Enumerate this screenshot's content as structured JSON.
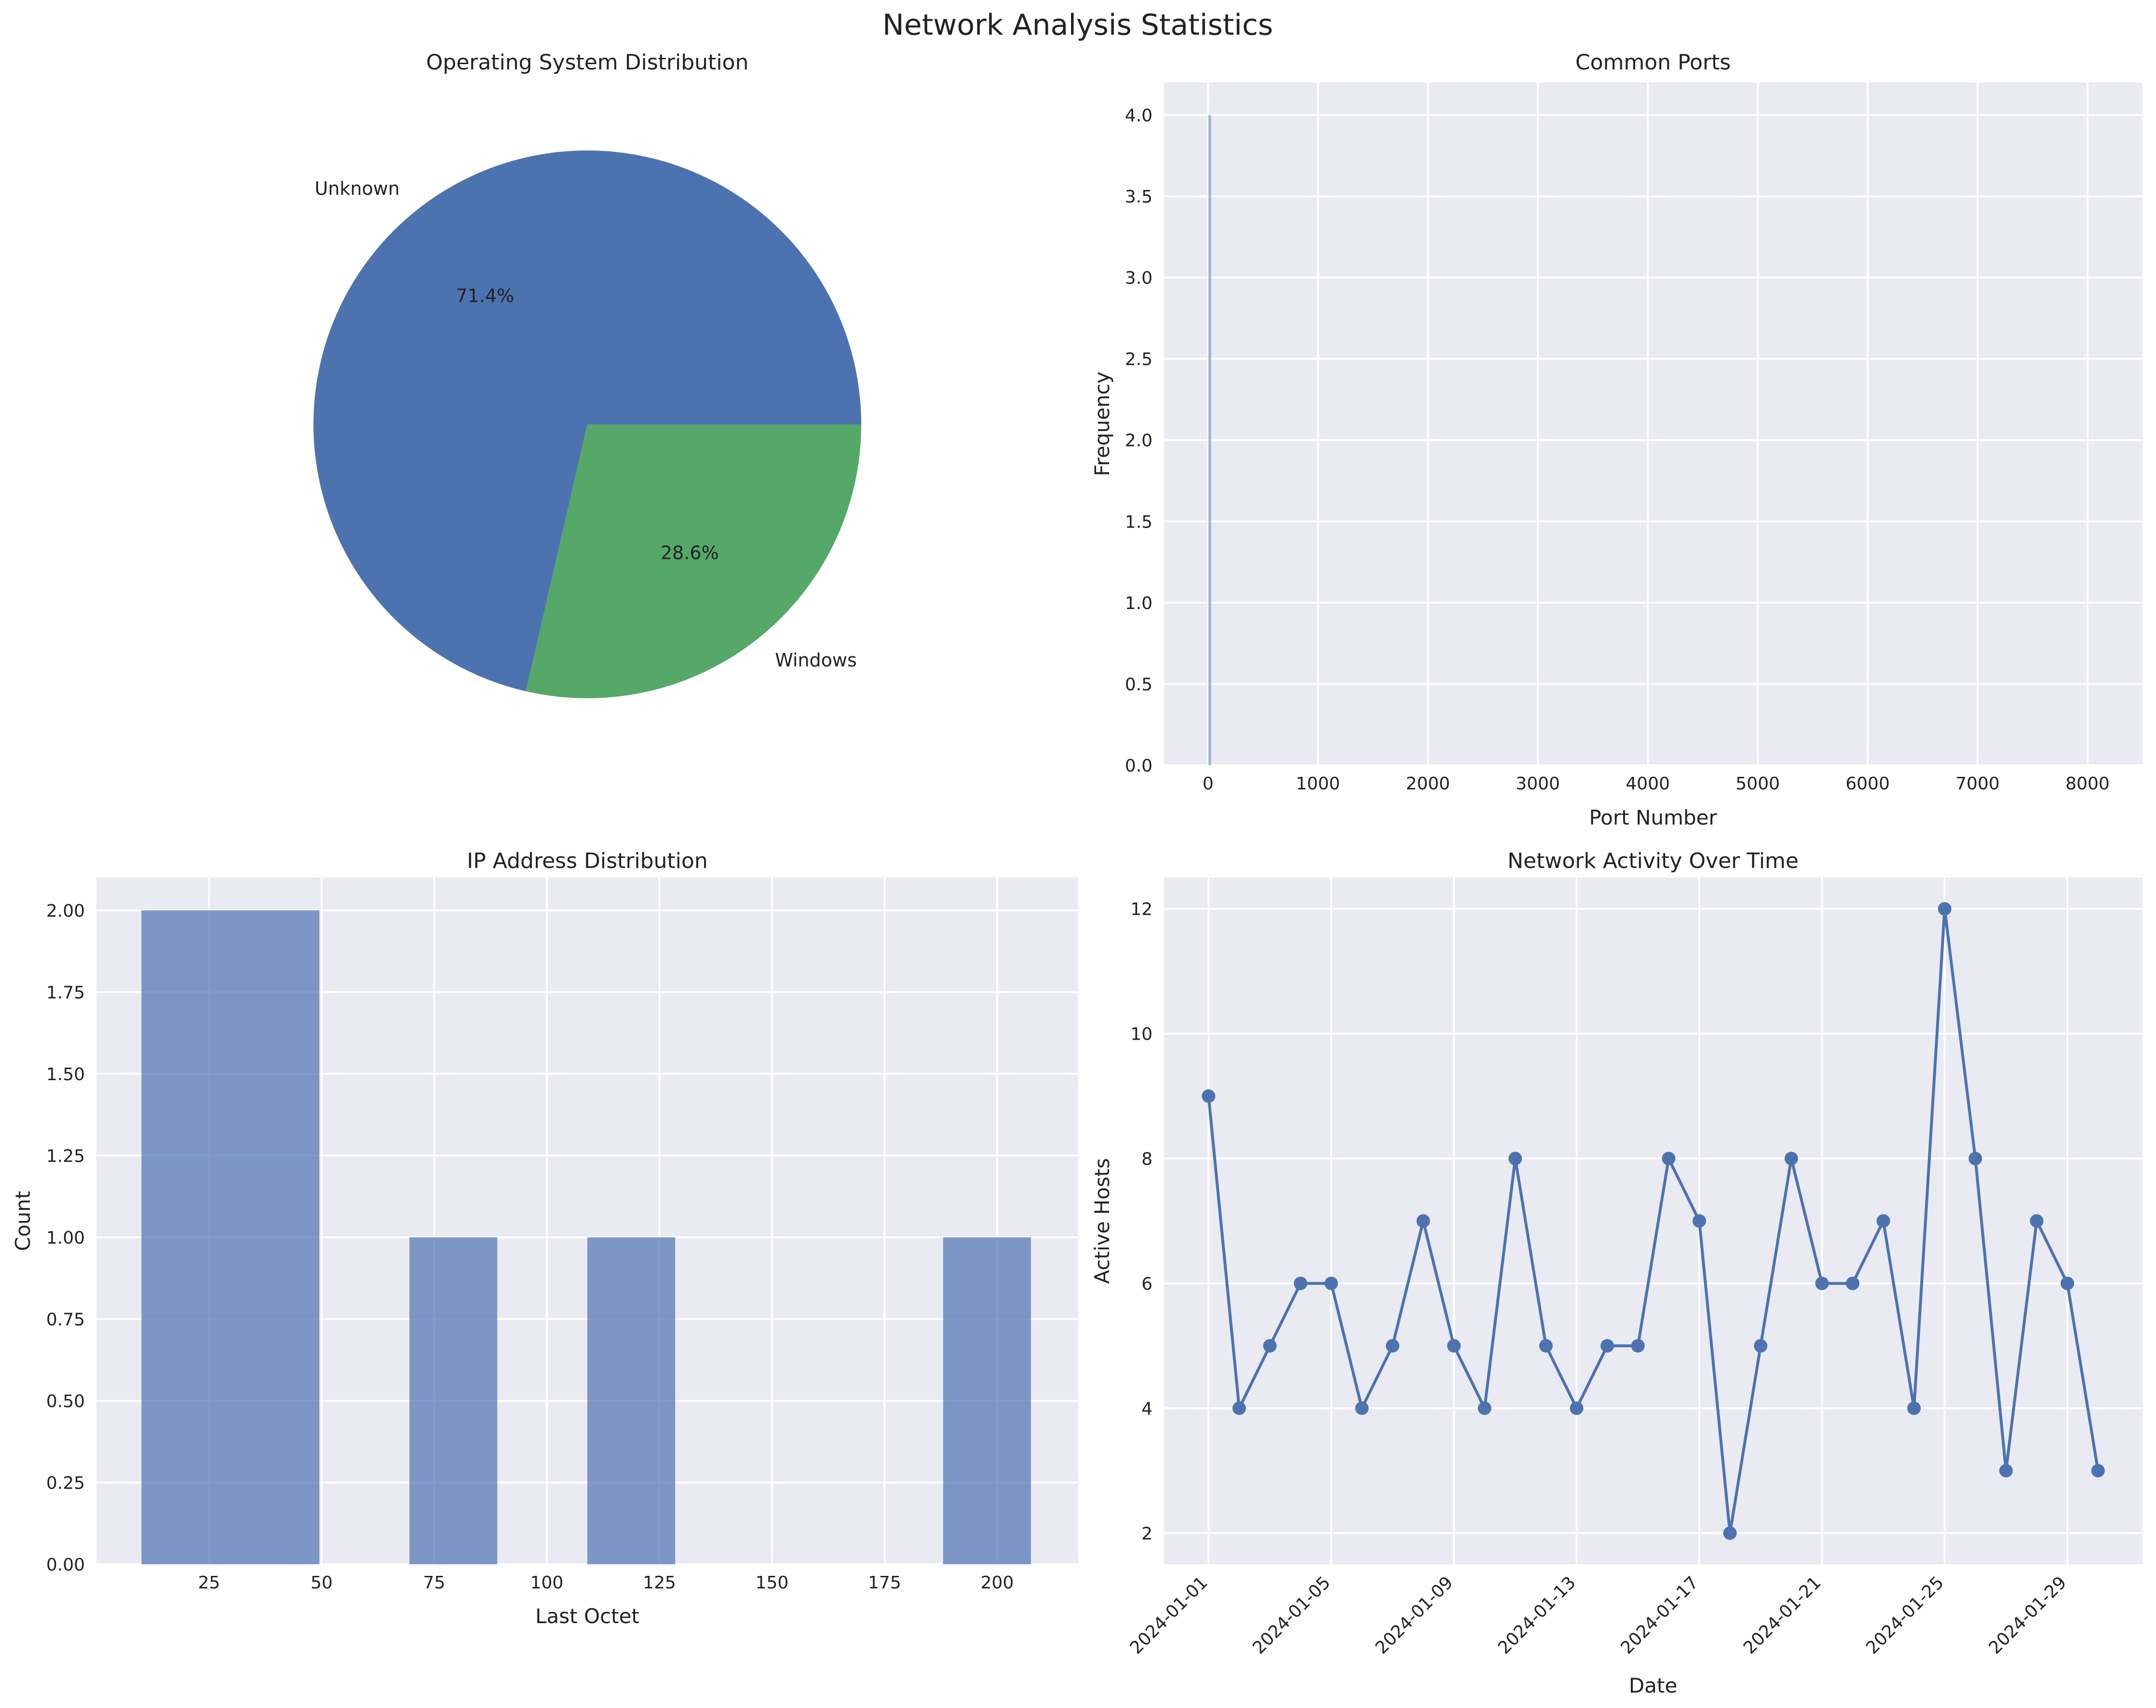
{
  "suptitle": "Network Analysis Statistics",
  "colors": {
    "blue": "#4c72b0",
    "green": "#55a868",
    "panel_bg": "#eaeaf2",
    "grid": "#ffffff"
  },
  "chart_data": [
    {
      "type": "pie",
      "title": "Operating System Distribution",
      "labels": [
        "Unknown",
        "Windows"
      ],
      "values": [
        71.4,
        28.6
      ],
      "autopct": [
        "71.4%",
        "28.6%"
      ],
      "colors": [
        "#4c72b0",
        "#55a868"
      ]
    },
    {
      "type": "bar",
      "title": "Common Ports",
      "xlabel": "Port Number",
      "ylabel": "Frequency",
      "xlim": [
        -400,
        8500
      ],
      "ylim": [
        0,
        4.2
      ],
      "xticks": [
        "0",
        "1000",
        "2000",
        "3000",
        "4000",
        "5000",
        "6000",
        "7000",
        "8000"
      ],
      "yticks": [
        "0.0",
        "0.5",
        "1.0",
        "1.5",
        "2.0",
        "2.5",
        "3.0",
        "3.5",
        "4.0"
      ],
      "bars": [
        {
          "x": 15,
          "value": 4
        }
      ]
    },
    {
      "type": "bar",
      "title": "IP Address Distribution",
      "xlabel": "Last Octet",
      "ylabel": "Count",
      "xlim": [
        0,
        218
      ],
      "ylim": [
        0,
        2.1
      ],
      "xticks": [
        "25",
        "50",
        "75",
        "100",
        "125",
        "150",
        "175",
        "200"
      ],
      "yticks": [
        "0.00",
        "0.25",
        "0.50",
        "0.75",
        "1.00",
        "1.25",
        "1.50",
        "1.75",
        "2.00"
      ],
      "bins": [
        {
          "from": 10,
          "to": 49.5,
          "value": 2
        },
        {
          "from": 69.5,
          "to": 89,
          "value": 1
        },
        {
          "from": 109,
          "to": 128.5,
          "value": 1
        },
        {
          "from": 188,
          "to": 207.5,
          "value": 1
        }
      ]
    },
    {
      "type": "line",
      "title": "Network Activity Over Time",
      "xlabel": "Date",
      "ylabel": "Active Hosts",
      "ylim": [
        1.5,
        12.5
      ],
      "yticks": [
        "2",
        "4",
        "6",
        "8",
        "10",
        "12"
      ],
      "xticks": [
        "2024-01-01",
        "2024-01-05",
        "2024-01-09",
        "2024-01-13",
        "2024-01-17",
        "2024-01-21",
        "2024-01-25",
        "2024-01-29"
      ],
      "x": [
        "2024-01-01",
        "2024-01-02",
        "2024-01-03",
        "2024-01-04",
        "2024-01-05",
        "2024-01-06",
        "2024-01-07",
        "2024-01-08",
        "2024-01-09",
        "2024-01-10",
        "2024-01-11",
        "2024-01-12",
        "2024-01-13",
        "2024-01-14",
        "2024-01-15",
        "2024-01-16",
        "2024-01-17",
        "2024-01-18",
        "2024-01-19",
        "2024-01-20",
        "2024-01-21",
        "2024-01-22",
        "2024-01-23",
        "2024-01-24",
        "2024-01-25",
        "2024-01-26",
        "2024-01-27",
        "2024-01-28",
        "2024-01-29",
        "2024-01-30"
      ],
      "y": [
        9,
        4,
        5,
        6,
        6,
        4,
        5,
        7,
        5,
        4,
        8,
        5,
        4,
        5,
        5,
        8,
        7,
        2,
        5,
        8,
        6,
        6,
        7,
        4,
        12,
        8,
        3,
        7,
        6,
        3
      ]
    }
  ]
}
